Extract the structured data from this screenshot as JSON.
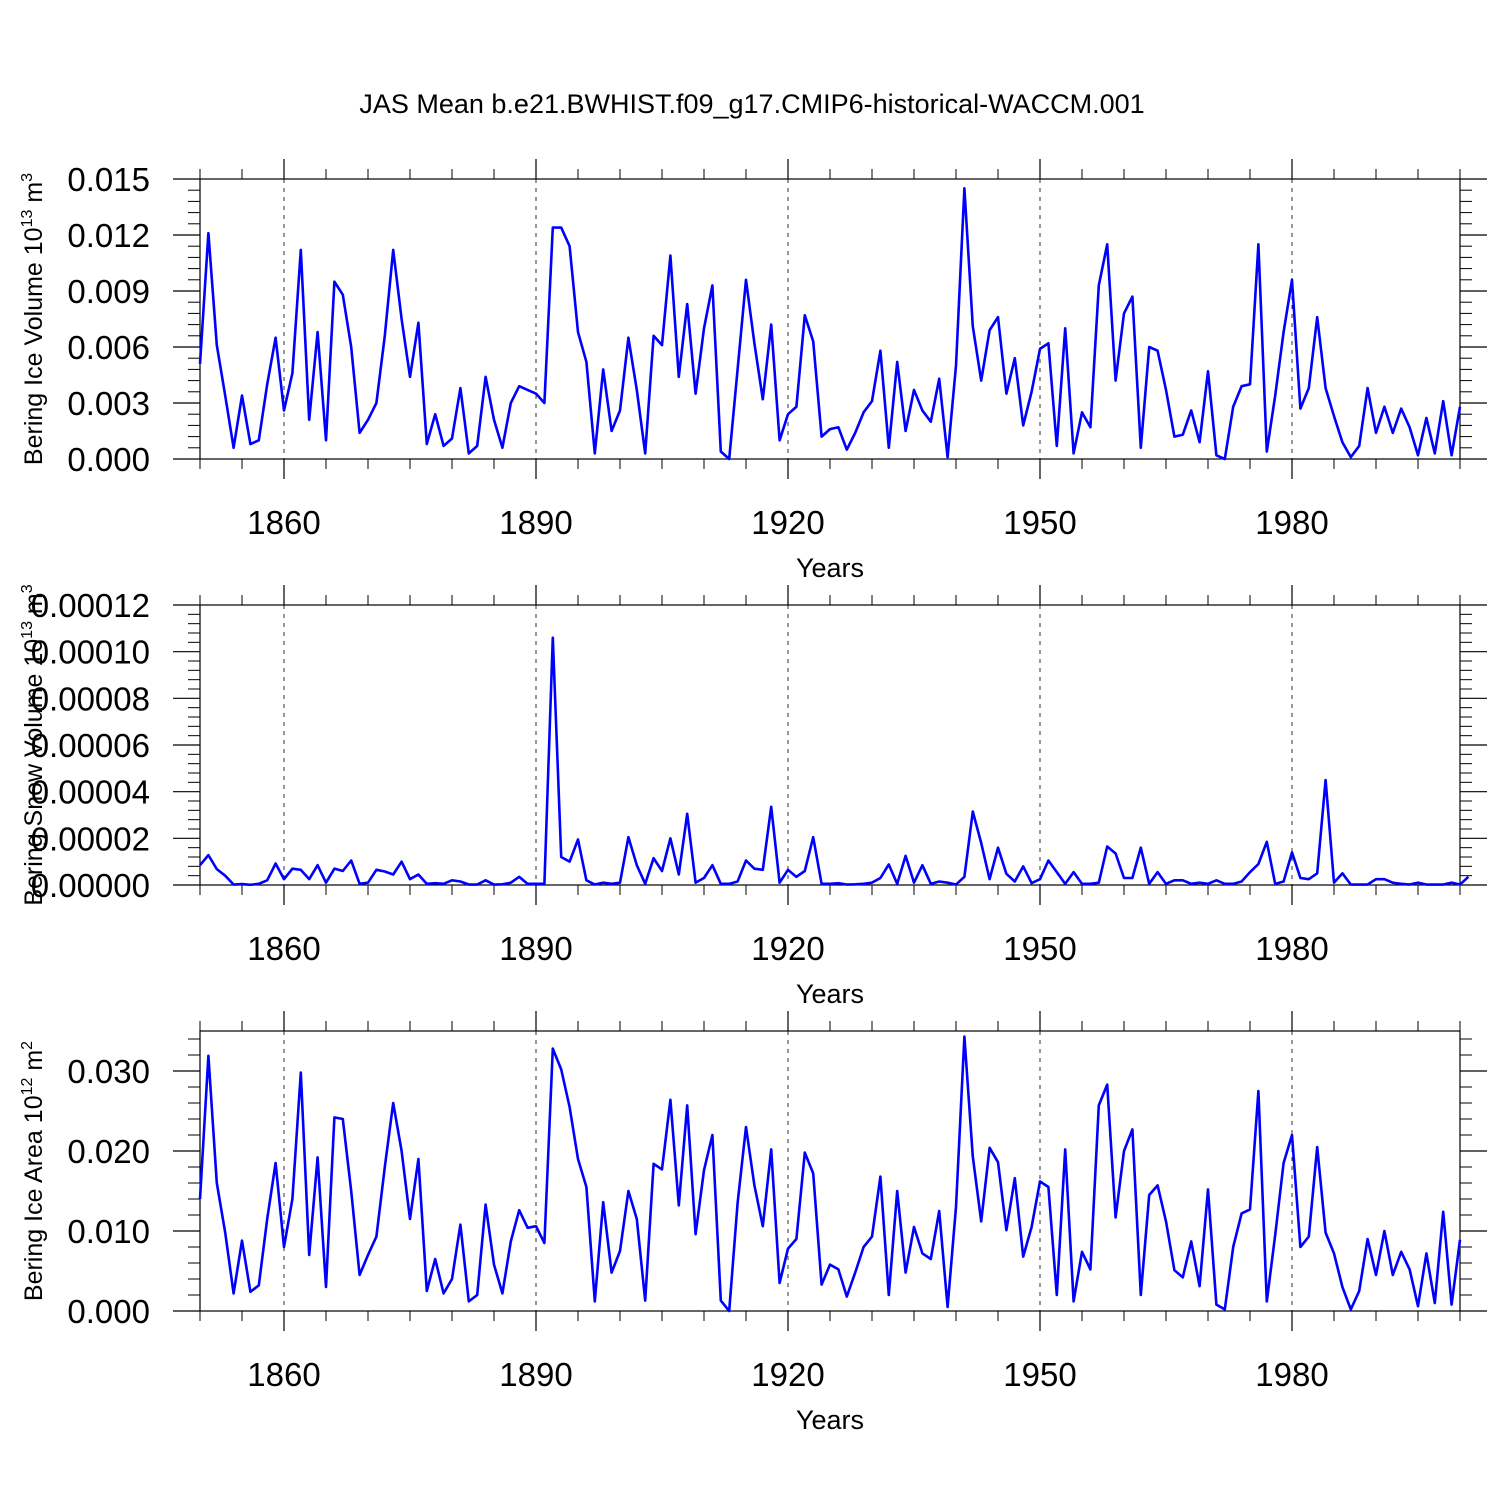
{
  "title": "JAS Mean b.e21.BWHIST.f09_g17.CMIP6-historical-WACCM.001",
  "colors": {
    "series": "#0000ff",
    "axis": "#000000",
    "grid": "#000000"
  },
  "chart_data": [
    {
      "type": "line",
      "title": "JAS Mean b.e21.BWHIST.f09_g17.CMIP6-historical-WACCM.001",
      "xlabel": "Years",
      "ylabel": "Bering Ice Volume 10^13 m^3",
      "ylabel_parts": {
        "main": "Bering Ice Volume 10",
        "exp1": "13",
        "unit": " m",
        "exp2": "3"
      },
      "x_start": 1850,
      "x_end": 2000,
      "xlim": [
        1850,
        2000
      ],
      "xticks": [
        1860,
        1890,
        1920,
        1950,
        1980
      ],
      "xtick_labels": [
        "1860",
        "1890",
        "1920",
        "1950",
        "1980"
      ],
      "ylim": [
        0,
        0.015
      ],
      "yticks": [
        0,
        0.003,
        0.006,
        0.009,
        0.012,
        0.015
      ],
      "ytick_labels": [
        "0.000",
        "0.003",
        "0.006",
        "0.009",
        "0.012",
        "0.015"
      ],
      "grid": "dashed vertical at major x ticks",
      "values": [
        0.0051,
        0.0121,
        0.0061,
        0.0034,
        0.0006,
        0.0034,
        0.0008,
        0.001,
        0.004,
        0.0065,
        0.0026,
        0.0046,
        0.0112,
        0.0021,
        0.0068,
        0.001,
        0.0095,
        0.0088,
        0.006,
        0.0014,
        0.0021,
        0.003,
        0.0066,
        0.0112,
        0.0075,
        0.0044,
        0.0073,
        0.0008,
        0.0024,
        0.0007,
        0.0011,
        0.0038,
        0.0003,
        0.0007,
        0.0044,
        0.0021,
        0.0006,
        0.003,
        0.0039,
        0.0037,
        0.0035,
        0.003,
        0.0124,
        0.0124,
        0.0114,
        0.0068,
        0.0052,
        0.0003,
        0.0048,
        0.0015,
        0.0026,
        0.0065,
        0.0037,
        0.0003,
        0.0066,
        0.0061,
        0.0109,
        0.0044,
        0.0083,
        0.0035,
        0.007,
        0.0093,
        0.0004,
        0.0,
        0.0048,
        0.0096,
        0.0062,
        0.0032,
        0.0072,
        0.001,
        0.0024,
        0.0028,
        0.0077,
        0.0063,
        0.0012,
        0.0016,
        0.0017,
        0.0005,
        0.0014,
        0.0025,
        0.0031,
        0.0058,
        0.0006,
        0.0052,
        0.0015,
        0.0037,
        0.0026,
        0.002,
        0.0043,
        0.0001,
        0.005,
        0.0145,
        0.0071,
        0.0042,
        0.0069,
        0.0076,
        0.0035,
        0.0054,
        0.0018,
        0.0036,
        0.0059,
        0.0062,
        0.0007,
        0.007,
        0.0003,
        0.0025,
        0.0017,
        0.0093,
        0.0115,
        0.0042,
        0.0078,
        0.0087,
        0.0006,
        0.006,
        0.0058,
        0.0037,
        0.0012,
        0.0013,
        0.0026,
        0.0009,
        0.0047,
        0.0002,
        0.0,
        0.0028,
        0.0039,
        0.004,
        0.0115,
        0.0004,
        0.0034,
        0.0068,
        0.0096,
        0.0027,
        0.0038,
        0.0076,
        0.0038,
        0.0023,
        0.0009,
        0.0001,
        0.0007,
        0.0038,
        0.0014,
        0.0028,
        0.0014,
        0.0027,
        0.0017,
        0.0002,
        0.0022,
        0.0003,
        0.0031,
        0.0002,
        0.0028
      ]
    },
    {
      "type": "line",
      "xlabel": "Years",
      "ylabel": "Bering Snow Volume 10^13 m^3",
      "ylabel_parts": {
        "main": "Bering Snow Volume 10",
        "exp1": "13",
        "unit": " m",
        "exp2": "3"
      },
      "x_start": 1850,
      "x_end": 2000,
      "xlim": [
        1850,
        2000
      ],
      "xticks": [
        1860,
        1890,
        1920,
        1950,
        1980
      ],
      "xtick_labels": [
        "1860",
        "1890",
        "1920",
        "1950",
        "1980"
      ],
      "ylim": [
        0,
        0.00012
      ],
      "yticks": [
        0,
        2e-05,
        4e-05,
        6e-05,
        8e-05,
        0.0001,
        0.00012
      ],
      "ytick_labels": [
        "0.00000",
        "0.00002",
        "0.00004",
        "0.00006",
        "0.00008",
        "0.00010",
        "0.00012"
      ],
      "grid": "dashed vertical at major x ticks",
      "values": [
        8.5e-06,
        1.28e-05,
        6.8e-06,
        4e-06,
        2e-07,
        4e-07,
        1e-07,
        5e-07,
        2e-06,
        9.2e-06,
        2.5e-06,
        7e-06,
        6.5e-06,
        2.5e-06,
        8.5e-06,
        1e-06,
        7e-06,
        6e-06,
        1.05e-05,
        5e-07,
        1e-06,
        6.5e-06,
        5.8e-06,
        4.5e-06,
        1e-05,
        2.5e-06,
        4.5e-06,
        5e-07,
        8e-07,
        5e-07,
        2e-06,
        1.5e-06,
        2e-07,
        2e-07,
        2e-06,
        2e-07,
        3e-07,
        1e-06,
        3.5e-06,
        5e-07,
        5e-07,
        5e-07,
        0.000106,
        1.2e-05,
        1e-05,
        1.95e-05,
        2e-06,
        2e-07,
        1e-06,
        5e-07,
        1e-06,
        2.05e-05,
        8.5e-06,
        5e-07,
        1.15e-05,
        6e-06,
        2e-05,
        4.5e-06,
        3.05e-05,
        1e-06,
        3e-06,
        8.5e-06,
        5e-07,
        5e-07,
        1.5e-06,
        1.05e-05,
        7e-06,
        6.5e-06,
        3.35e-05,
        1e-06,
        6.5e-06,
        3.5e-06,
        6e-06,
        2.05e-05,
        5e-07,
        5e-07,
        8e-07,
        2e-07,
        3e-07,
        5e-07,
        1e-06,
        3e-06,
        8.8e-06,
        5e-07,
        1.25e-05,
        1e-06,
        8.5e-06,
        5e-07,
        1.5e-06,
        1e-06,
        2e-07,
        3.5e-06,
        3.15e-05,
        1.8e-05,
        2.5e-06,
        1.6e-05,
        4.8e-06,
        1.5e-06,
        8e-06,
        8e-07,
        2.5e-06,
        1.05e-05,
        5.5e-06,
        5e-07,
        5.5e-06,
        5e-07,
        5e-07,
        1e-06,
        1.65e-05,
        1.35e-05,
        3e-06,
        3e-06,
        1.6e-05,
        5e-07,
        5.5e-06,
        5e-07,
        2e-06,
        2e-06,
        5e-07,
        1e-06,
        5e-07,
        2e-06,
        5e-07,
        5e-07,
        1.5e-06,
        5.5e-06,
        9e-06,
        1.85e-05,
        5e-07,
        1.5e-06,
        1.4e-05,
        3e-06,
        2.5e-06,
        5e-06,
        4.5e-05,
        1e-06,
        5e-06,
        2e-07,
        2e-07,
        2e-07,
        2.5e-06,
        2.5e-06,
        1e-06,
        5e-07,
        2e-07,
        1e-06,
        2e-07,
        2e-07,
        2e-07,
        1e-06,
        2e-07,
        3.5e-06
      ]
    },
    {
      "type": "line",
      "xlabel": "Years",
      "ylabel": "Bering Ice Area 10^12 m^2",
      "ylabel_parts": {
        "main": "Bering Ice Area 10",
        "exp1": "12",
        "unit": " m",
        "exp2": "2"
      },
      "x_start": 1850,
      "x_end": 2000,
      "xlim": [
        1850,
        2000
      ],
      "xticks": [
        1860,
        1890,
        1920,
        1950,
        1980
      ],
      "xtick_labels": [
        "1860",
        "1890",
        "1920",
        "1950",
        "1980"
      ],
      "ylim": [
        0,
        0.035
      ],
      "yticks": [
        0,
        0.01,
        0.02,
        0.03
      ],
      "ytick_labels": [
        "0.000",
        "0.010",
        "0.020",
        "0.030"
      ],
      "grid": "dashed vertical at major x ticks",
      "values": [
        0.014,
        0.0319,
        0.016,
        0.0098,
        0.0022,
        0.0088,
        0.0024,
        0.0032,
        0.0115,
        0.0185,
        0.008,
        0.014,
        0.0298,
        0.007,
        0.0192,
        0.003,
        0.0242,
        0.024,
        0.015,
        0.0045,
        0.007,
        0.0093,
        0.018,
        0.026,
        0.02,
        0.0115,
        0.019,
        0.0025,
        0.0065,
        0.0022,
        0.004,
        0.0108,
        0.0012,
        0.002,
        0.0133,
        0.0058,
        0.0022,
        0.0087,
        0.0126,
        0.0104,
        0.0106,
        0.0085,
        0.0328,
        0.0302,
        0.0255,
        0.019,
        0.0155,
        0.0012,
        0.0136,
        0.0048,
        0.0075,
        0.015,
        0.0115,
        0.0013,
        0.0184,
        0.0177,
        0.0264,
        0.0132,
        0.0257,
        0.0096,
        0.0176,
        0.022,
        0.0013,
        0.0,
        0.0135,
        0.023,
        0.0157,
        0.0106,
        0.0202,
        0.0035,
        0.0078,
        0.009,
        0.0198,
        0.0172,
        0.0033,
        0.0058,
        0.0052,
        0.0018,
        0.0048,
        0.008,
        0.0093,
        0.0168,
        0.002,
        0.015,
        0.0048,
        0.0105,
        0.0072,
        0.0065,
        0.0125,
        0.0005,
        0.013,
        0.0343,
        0.0193,
        0.0112,
        0.0204,
        0.0186,
        0.0101,
        0.0166,
        0.0068,
        0.0105,
        0.0162,
        0.0155,
        0.002,
        0.0202,
        0.0012,
        0.0074,
        0.0052,
        0.0257,
        0.0283,
        0.0117,
        0.02,
        0.0227,
        0.002,
        0.0145,
        0.0157,
        0.0112,
        0.0051,
        0.0042,
        0.0087,
        0.0031,
        0.0152,
        0.0008,
        0.0002,
        0.008,
        0.0122,
        0.0127,
        0.0275,
        0.0012,
        0.0095,
        0.0185,
        0.022,
        0.008,
        0.0093,
        0.0205,
        0.0098,
        0.0072,
        0.003,
        0.0002,
        0.0025,
        0.009,
        0.0045,
        0.01,
        0.0045,
        0.0074,
        0.0052,
        0.0006,
        0.0072,
        0.001,
        0.0124,
        0.0008,
        0.0089
      ]
    }
  ]
}
